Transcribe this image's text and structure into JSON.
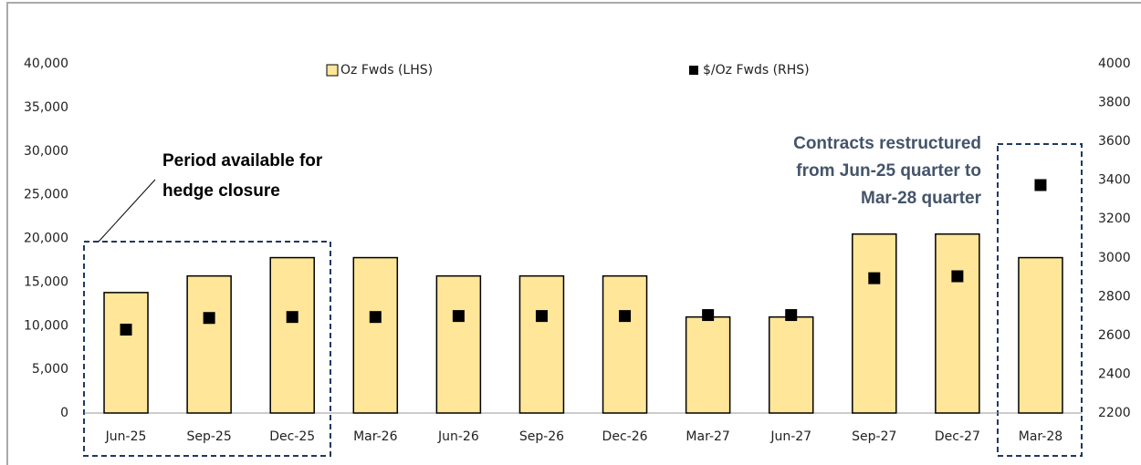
{
  "chart_data": {
    "type": "bar",
    "categories": [
      "Jun-25",
      "Sep-25",
      "Dec-25",
      "Mar-26",
      "Jun-26",
      "Sep-26",
      "Dec-26",
      "Mar-27",
      "Jun-27",
      "Sep-27",
      "Dec-27",
      "Mar-28"
    ],
    "series": [
      {
        "name": "Oz Fwds (LHS)",
        "color": "#ffe699",
        "type": "bar",
        "values": [
          13800,
          15700,
          17800,
          17800,
          15700,
          15700,
          15700,
          11000,
          11000,
          20500,
          20500,
          17800
        ]
      },
      {
        "name": "$/Oz Fwds (RHS)",
        "color": "#000000",
        "type": "scatter",
        "axis": "y2",
        "values": [
          2630,
          2690,
          2695,
          2695,
          2700,
          2700,
          2700,
          2705,
          2705,
          2895,
          2905,
          3375
        ]
      }
    ],
    "ylim": [
      0,
      40000
    ],
    "yticks": [
      0,
      {
        "value": 5000,
        "label": "5,000"
      },
      {
        "value": 10000,
        "label": "10,000"
      },
      {
        "value": 15000,
        "label": "15,000"
      },
      {
        "value": 20000,
        "label": "20,000"
      },
      {
        "value": 25000,
        "label": "25,000"
      },
      {
        "value": 30000,
        "label": "30,000"
      },
      {
        "value": 35000,
        "label": "35,000"
      },
      {
        "value": 40000,
        "label": "40,000"
      }
    ],
    "y2lim": [
      2200,
      4000
    ],
    "y2ticks": [
      2200,
      2400,
      2600,
      2800,
      3000,
      3200,
      3400,
      3600,
      3800,
      4000
    ],
    "grid": false,
    "annotations": [
      {
        "lines": [
          "Period available for",
          "hedge closure"
        ],
        "color": "#000000"
      },
      {
        "lines": [
          "Contracts restructured",
          "from Jun-25 quarter to",
          "Mar-28 quarter"
        ],
        "color": "#44546a"
      }
    ]
  }
}
